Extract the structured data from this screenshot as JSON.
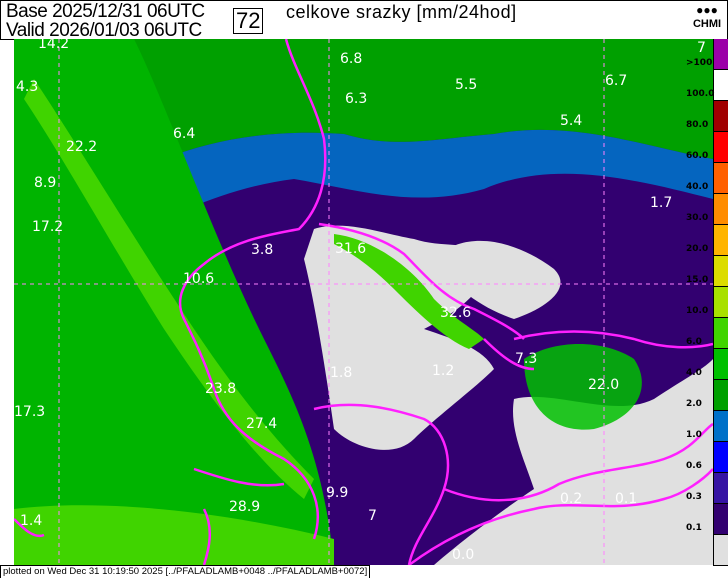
{
  "header": {
    "base_label": "Base",
    "base_time": "2025/12/31 06UTC",
    "valid_label": "Valid",
    "valid_time": "2026/01/03 06UTC",
    "lead_hours": "72",
    "title": "celkove srazky [mm/24hod]",
    "logo_text": "CHMI",
    "logo_dots": "●●●"
  },
  "map_labels": [
    "14.2",
    "4.3",
    "22.2",
    "8.9",
    "17.2",
    "6.4",
    "6.8",
    "6.3",
    "5.5",
    "6.7",
    "5.4",
    "1.7",
    "3.8",
    "31.6",
    "10.6",
    "32.6",
    "1.8",
    "1.2",
    "7.3",
    "22.0",
    "17.3",
    "23.8",
    "27.4",
    "9.9",
    "28.9",
    "7",
    "0.2",
    "0.1",
    "0.0",
    "1.4",
    "7"
  ],
  "legend": {
    "labels": [
      ">100",
      "100.0",
      "80.0",
      "60.0",
      "40.0",
      "30.0",
      "20.0",
      "15.0",
      "10.0",
      "6.0",
      "4.0",
      "2.0",
      "1.0",
      "0.6",
      "0.3",
      "0.1"
    ],
    "colors": [
      "#9b00a8",
      "#ffffff",
      "#a00000",
      "#ff0000",
      "#ff6000",
      "#ff8c00",
      "#ffb400",
      "#dcdc00",
      "#a8e000",
      "#40d400",
      "#00c000",
      "#00a000",
      "#0070c8",
      "#0000ff",
      "#3614a4",
      "#320070",
      "#e0e0e0"
    ]
  },
  "footer": "plotted on Wed Dec 31 10:19:50 2025 [../PFALADLAMB+0048 ../PFALADLAMB+0072]"
}
